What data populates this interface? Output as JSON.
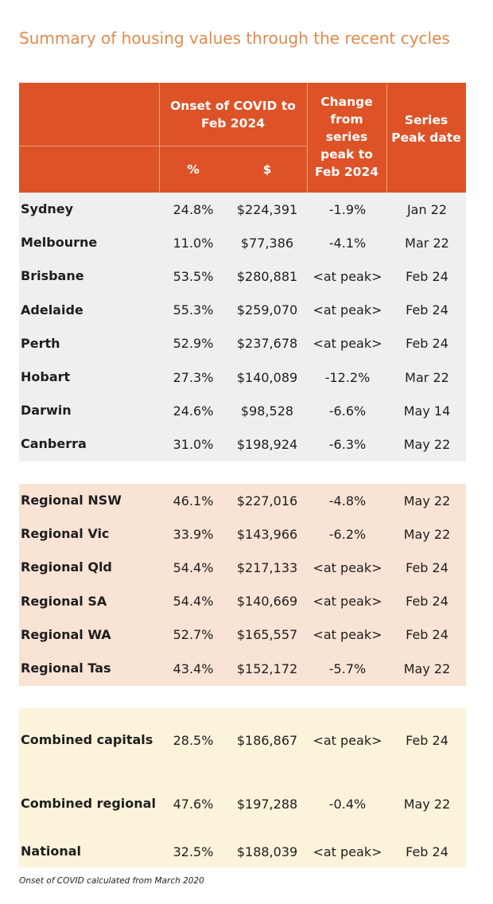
{
  "title": "Summary of housing values through the recent cycles",
  "header": {
    "onset": "Onset of COVID to Feb 2024",
    "pct": "%",
    "dollar": "$",
    "change": "Change from series peak to Feb 2024",
    "peak_date": "Series Peak date"
  },
  "capitals": [
    {
      "name": "Sydney",
      "pct": "24.8%",
      "value": "$224,391",
      "change": "-1.9%",
      "date": "Jan 22"
    },
    {
      "name": "Melbourne",
      "pct": "11.0%",
      "value": "$77,386",
      "change": "-4.1%",
      "date": "Mar 22"
    },
    {
      "name": "Brisbane",
      "pct": "53.5%",
      "value": "$280,881",
      "change": "<at peak>",
      "date": "Feb 24"
    },
    {
      "name": "Adelaide",
      "pct": "55.3%",
      "value": "$259,070",
      "change": "<at peak>",
      "date": "Feb 24"
    },
    {
      "name": "Perth",
      "pct": "52.9%",
      "value": "$237,678",
      "change": "<at peak>",
      "date": "Feb 24"
    },
    {
      "name": "Hobart",
      "pct": "27.3%",
      "value": "$140,089",
      "change": "-12.2%",
      "date": "Mar 22"
    },
    {
      "name": "Darwin",
      "pct": "24.6%",
      "value": "$98,528",
      "change": "-6.6%",
      "date": "May 14"
    },
    {
      "name": "Canberra",
      "pct": "31.0%",
      "value": "$198,924",
      "change": "-6.3%",
      "date": "May 22"
    }
  ],
  "regionals": [
    {
      "name": "Regional NSW",
      "pct": "46.1%",
      "value": "$227,016",
      "change": "-4.8%",
      "date": "May 22"
    },
    {
      "name": "Regional Vic",
      "pct": "33.9%",
      "value": "$143,966",
      "change": "-6.2%",
      "date": "May 22"
    },
    {
      "name": "Regional Qld",
      "pct": "54.4%",
      "value": "$217,133",
      "change": "<at peak>",
      "date": "Feb 24"
    },
    {
      "name": "Regional SA",
      "pct": "54.4%",
      "value": "$140,669",
      "change": "<at peak>",
      "date": "Feb 24"
    },
    {
      "name": "Regional WA",
      "pct": "52.7%",
      "value": "$165,557",
      "change": "<at peak>",
      "date": "Feb 24"
    },
    {
      "name": "Regional Tas",
      "pct": "43.4%",
      "value": "$152,172",
      "change": "-5.7%",
      "date": "May 22"
    }
  ],
  "combined": [
    {
      "name": "Combined capitals",
      "pct": "28.5%",
      "value": "$186,867",
      "change": "<at peak>",
      "date": "Feb 24"
    },
    {
      "name": "Combined regional",
      "pct": "47.6%",
      "value": "$197,288",
      "change": "-0.4%",
      "date": "May 22"
    },
    {
      "name": "National",
      "pct": "32.5%",
      "value": "$188,039",
      "change": "<at peak>",
      "date": "Feb 24"
    }
  ],
  "footnote": "Onset of COVID calculated from March 2020",
  "colors": {
    "header_bg": "#dd5327",
    "title": "#e08a4c",
    "capitals_bg": "#efefef",
    "regionals_bg": "#f9e3d4",
    "combined_bg": "#fcf3db"
  },
  "chart_data": {
    "type": "table",
    "title": "Summary of housing values through the recent cycles",
    "columns": [
      "",
      "Onset of COVID to Feb 2024 %",
      "Onset of COVID to Feb 2024 $",
      "Change from series peak to Feb 2024",
      "Series Peak date"
    ],
    "rows": [
      [
        "Sydney",
        "24.8%",
        "$224,391",
        "-1.9%",
        "Jan 22"
      ],
      [
        "Melbourne",
        "11.0%",
        "$77,386",
        "-4.1%",
        "Mar 22"
      ],
      [
        "Brisbane",
        "53.5%",
        "$280,881",
        "<at peak>",
        "Feb 24"
      ],
      [
        "Adelaide",
        "55.3%",
        "$259,070",
        "<at peak>",
        "Feb 24"
      ],
      [
        "Perth",
        "52.9%",
        "$237,678",
        "<at peak>",
        "Feb 24"
      ],
      [
        "Hobart",
        "27.3%",
        "$140,089",
        "-12.2%",
        "Mar 22"
      ],
      [
        "Darwin",
        "24.6%",
        "$98,528",
        "-6.6%",
        "May 14"
      ],
      [
        "Canberra",
        "31.0%",
        "$198,924",
        "-6.3%",
        "May 22"
      ],
      [
        "Regional NSW",
        "46.1%",
        "$227,016",
        "-4.8%",
        "May 22"
      ],
      [
        "Regional Vic",
        "33.9%",
        "$143,966",
        "-6.2%",
        "May 22"
      ],
      [
        "Regional Qld",
        "54.4%",
        "$217,133",
        "<at peak>",
        "Feb 24"
      ],
      [
        "Regional SA",
        "54.4%",
        "$140,669",
        "<at peak>",
        "Feb 24"
      ],
      [
        "Regional WA",
        "52.7%",
        "$165,557",
        "<at peak>",
        "Feb 24"
      ],
      [
        "Regional Tas",
        "43.4%",
        "$152,172",
        "-5.7%",
        "May 22"
      ],
      [
        "Combined capitals",
        "28.5%",
        "$186,867",
        "<at peak>",
        "Feb 24"
      ],
      [
        "Combined regional",
        "47.6%",
        "$197,288",
        "-0.4%",
        "May 22"
      ],
      [
        "National",
        "32.5%",
        "$188,039",
        "<at peak>",
        "Feb 24"
      ]
    ]
  }
}
